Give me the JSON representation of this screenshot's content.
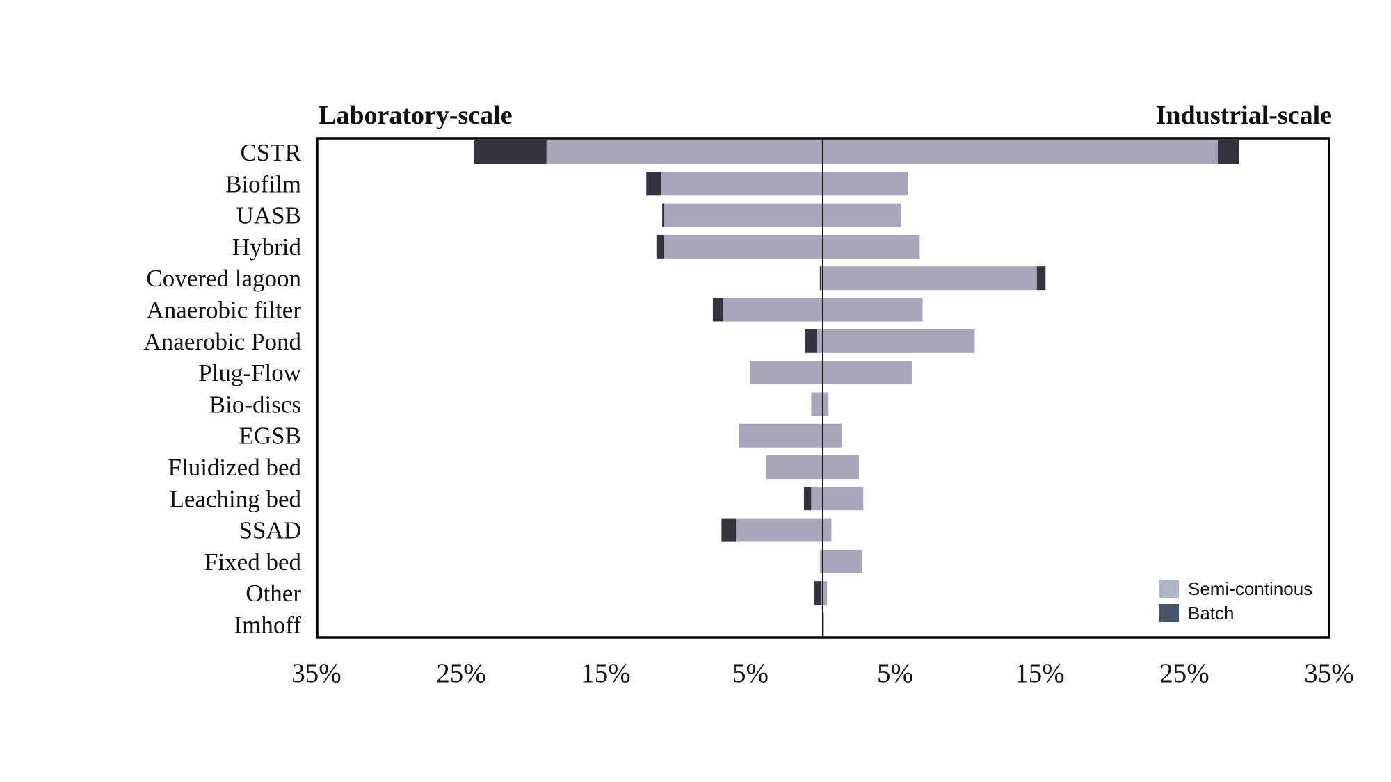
{
  "chart_data": {
    "type": "bar",
    "orientation": "horizontal-diverging",
    "left_title": "Laboratory-scale",
    "right_title": "Industrial-scale",
    "categories": [
      "CSTR",
      "Biofilm",
      "UASB",
      "Hybrid",
      "Covered lagoon",
      "Anaerobic filter",
      "Anaerobic Pond",
      "Plug-Flow",
      "Bio-discs",
      "EGSB",
      "Fluidized bed",
      "Leaching bed",
      "SSAD",
      "Fixed bed",
      "Other",
      "Imhoff"
    ],
    "series": [
      {
        "name": "Semi-continous",
        "color": "#aaa6ba",
        "laboratory": [
          19.1,
          11.2,
          11.0,
          11.0,
          0.1,
          6.9,
          0.4,
          5.0,
          0.8,
          5.8,
          3.9,
          0.8,
          6.0,
          0.2,
          0.1,
          0.0
        ],
        "industrial": [
          27.3,
          5.9,
          5.4,
          6.7,
          14.8,
          6.9,
          10.5,
          6.2,
          0.4,
          1.3,
          2.5,
          2.8,
          0.6,
          2.7,
          0.3,
          0.1
        ]
      },
      {
        "name": "Batch",
        "color": "#35333f",
        "laboratory": [
          5.0,
          1.0,
          0.1,
          0.5,
          0.1,
          0.7,
          0.8,
          0.0,
          0.0,
          0.0,
          0.0,
          0.5,
          1.0,
          0.0,
          0.5,
          0.0
        ],
        "industrial": [
          1.5,
          0.0,
          0.0,
          0.0,
          0.6,
          0.0,
          0.0,
          0.0,
          0.0,
          0.0,
          0.0,
          0.0,
          0.0,
          0.0,
          0.0,
          0.0
        ]
      }
    ],
    "x_ticks": [
      "35%",
      "25%",
      "15%",
      "5%",
      "5%",
      "15%",
      "25%",
      "35%"
    ],
    "xlim": [
      -35,
      35
    ],
    "legend": {
      "position": "bottom-right",
      "entries": [
        {
          "label": "Semi-continous",
          "color": "#b0b6c8"
        },
        {
          "label": "Batch",
          "color": "#475569"
        }
      ]
    },
    "grid": false
  }
}
